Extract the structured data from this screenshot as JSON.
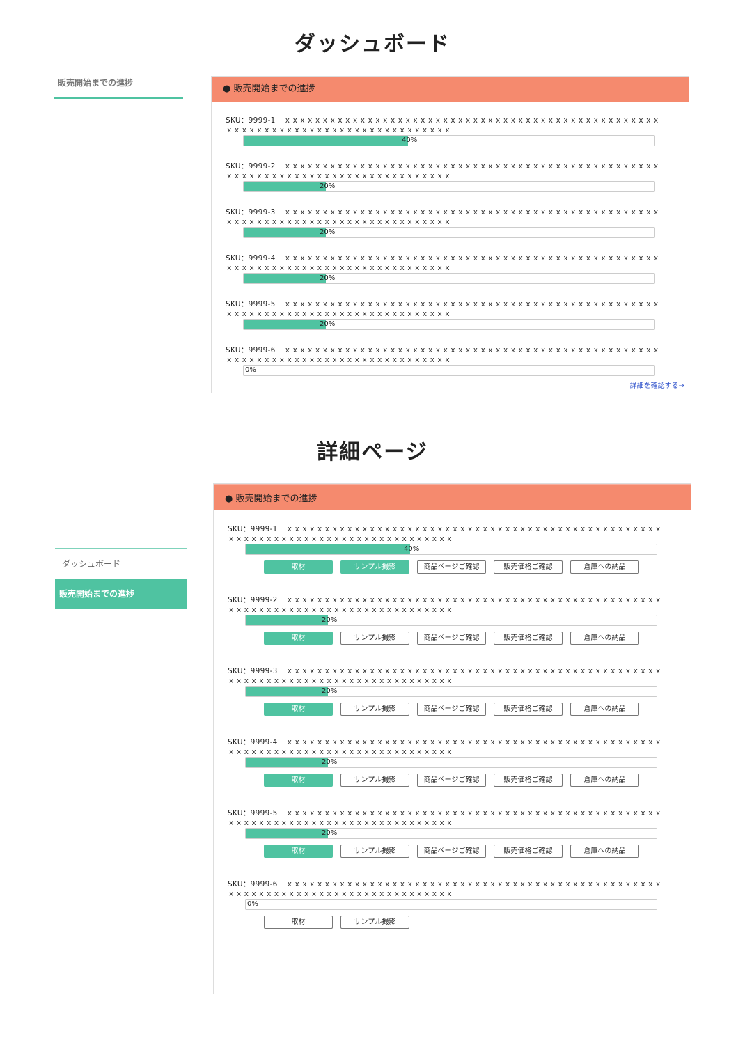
{
  "dashboard": {
    "title": "ダッシュボード",
    "sidebar_label": "販売開始までの進捗",
    "panel_header": "● 販売開始までの進捗",
    "detail_link": "詳細を確認する→",
    "rows": [
      {
        "sku": "SKU：9999-1",
        "progress": 40,
        "pct": "40%"
      },
      {
        "sku": "SKU：9999-2",
        "progress": 20,
        "pct": "20%"
      },
      {
        "sku": "SKU：9999-3",
        "progress": 20,
        "pct": "20%"
      },
      {
        "sku": "SKU：9999-4",
        "progress": 20,
        "pct": "20%"
      },
      {
        "sku": "SKU：9999-5",
        "progress": 20,
        "pct": "20%"
      },
      {
        "sku": "SKU：9999-6",
        "progress": 0,
        "pct": "0%"
      }
    ]
  },
  "detail": {
    "title": "詳細ページ",
    "panel_header": "● 販売開始までの進捗",
    "sidebar": [
      {
        "label": "ダッシュボード",
        "active": false
      },
      {
        "label": "販売開始までの進捗",
        "active": true
      }
    ],
    "chevron": "›",
    "step_labels": [
      "取材",
      "サンプル撮影",
      "商品ページご確認",
      "販売価格ご確認",
      "倉庫への納品"
    ],
    "rows": [
      {
        "sku": "SKU：9999-1",
        "progress": 40,
        "pct": "40%",
        "visible_steps": 5,
        "done_steps": 2
      },
      {
        "sku": "SKU：9999-2",
        "progress": 20,
        "pct": "20%",
        "visible_steps": 5,
        "done_steps": 1
      },
      {
        "sku": "SKU：9999-3",
        "progress": 20,
        "pct": "20%",
        "visible_steps": 5,
        "done_steps": 1
      },
      {
        "sku": "SKU：9999-4",
        "progress": 20,
        "pct": "20%",
        "visible_steps": 5,
        "done_steps": 1
      },
      {
        "sku": "SKU：9999-5",
        "progress": 20,
        "pct": "20%",
        "visible_steps": 5,
        "done_steps": 1
      },
      {
        "sku": "SKU：9999-6",
        "progress": 0,
        "pct": "0%",
        "visible_steps": 2,
        "done_steps": 0
      }
    ]
  },
  "placeholder_text": "ｘｘｘｘｘｘｘｘｘｘｘｘｘｘｘｘｘｘｘｘｘｘｘｘｘｘｘｘｘｘｘｘｘｘｘｘｘｘｘｘｘｘｘｘｘｘｘｘｘｘｘｘｘｘｘｘｘｘｘｘｘｘｘｘｘｘｘｘｘｘｘｘｘｘｘｘｘｘｘｘ",
  "colors": {
    "accent": "#4fc3a1",
    "header": "#f58a6e"
  }
}
